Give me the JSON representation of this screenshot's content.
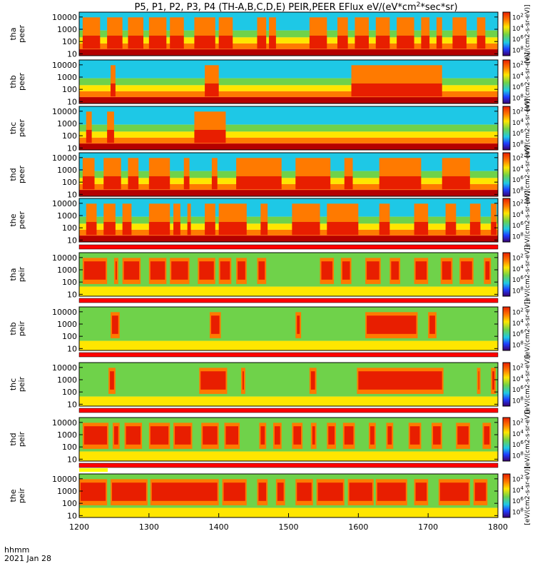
{
  "chart_data": {
    "type": "heatmap",
    "title": "P5, P1, P2, P3, P4 (TH-A,B,C,D,E) PEIR,PEER EFlux eV/(eV*cm2*sec*sr)",
    "title_main": "P5, P1, P2, P3, P4 (TH-A,B,C,D,E) PEIR,PEER EFlux eV/(eV*cm",
    "title_sup": "2",
    "title_tail": "*sec*sr)",
    "x_axis": {
      "label_line1": "hhmm",
      "label_line2": "2021 Jan 28",
      "ticks": [
        "1200",
        "1300",
        "1400",
        "1500",
        "1600",
        "1700",
        "1800"
      ],
      "range": [
        1200,
        1800
      ]
    },
    "y_axis": {
      "scale": "log",
      "ticks": [
        "10",
        "100",
        "1000",
        "10000"
      ],
      "range": [
        7,
        25000
      ]
    },
    "colorbar": {
      "scale": "log",
      "unit_label": "[eV/(cm2-s-sr-eV)]",
      "ticks_sup": [
        "2",
        "3",
        "4",
        "5",
        "6",
        "7",
        "8"
      ],
      "tick_base": "10"
    },
    "colors": {
      "background": "#ffffff",
      "dark_red": "#b40000",
      "red": "#e81e00",
      "orange": "#ff7a00",
      "yellow": "#ffe600",
      "green": "#6fd24a",
      "cyan": "#1ec8e6",
      "blue": "#1e3cff",
      "indicator_red": "#ff0000",
      "indicator_yellow": "#ffff00"
    },
    "panels": [
      {
        "id": "tha-peer",
        "probe": "tha",
        "instrument": "peer"
      },
      {
        "id": "thb-peer",
        "probe": "thb",
        "instrument": "peer"
      },
      {
        "id": "thc-peer",
        "probe": "thc",
        "instrument": "peer"
      },
      {
        "id": "thd-peer",
        "probe": "thd",
        "instrument": "peer"
      },
      {
        "id": "the-peer",
        "probe": "the",
        "instrument": "peer"
      },
      {
        "id": "tha-peir",
        "probe": "tha",
        "instrument": "peir"
      },
      {
        "id": "thb-peir",
        "probe": "thb",
        "instrument": "peir"
      },
      {
        "id": "thc-peir",
        "probe": "thc",
        "instrument": "peir"
      },
      {
        "id": "thd-peir",
        "probe": "thd",
        "instrument": "peir"
      },
      {
        "id": "the-peir",
        "probe": "the",
        "instrument": "peir"
      }
    ],
    "intense_intervals": {
      "tha-peer": [
        [
          1205,
          1230
        ],
        [
          1240,
          1262
        ],
        [
          1270,
          1292
        ],
        [
          1300,
          1325
        ],
        [
          1330,
          1350
        ],
        [
          1365,
          1395
        ],
        [
          1400,
          1420
        ],
        [
          1455,
          1468
        ],
        [
          1472,
          1482
        ],
        [
          1530,
          1555
        ],
        [
          1570,
          1585
        ],
        [
          1595,
          1615
        ],
        [
          1625,
          1645
        ],
        [
          1655,
          1680
        ],
        [
          1690,
          1702
        ],
        [
          1712,
          1720
        ],
        [
          1735,
          1755
        ],
        [
          1770,
          1782
        ]
      ],
      "thb-peer": [
        [
          1245,
          1252
        ],
        [
          1380,
          1400
        ],
        [
          1590,
          1720
        ]
      ],
      "thc-peer": [
        [
          1210,
          1218
        ],
        [
          1240,
          1250
        ],
        [
          1365,
          1410
        ]
      ],
      "thd-peer": [
        [
          1205,
          1222
        ],
        [
          1235,
          1260
        ],
        [
          1270,
          1285
        ],
        [
          1300,
          1330
        ],
        [
          1350,
          1358
        ],
        [
          1390,
          1398
        ],
        [
          1425,
          1490
        ],
        [
          1510,
          1560
        ],
        [
          1580,
          1592
        ],
        [
          1630,
          1690
        ],
        [
          1720,
          1760
        ]
      ],
      "the-peer": [
        [
          1210,
          1225
        ],
        [
          1235,
          1252
        ],
        [
          1262,
          1275
        ],
        [
          1300,
          1330
        ],
        [
          1335,
          1345
        ],
        [
          1355,
          1360
        ],
        [
          1380,
          1395
        ],
        [
          1400,
          1440
        ],
        [
          1460,
          1470
        ],
        [
          1505,
          1545
        ],
        [
          1555,
          1600
        ],
        [
          1630,
          1645
        ],
        [
          1680,
          1700
        ],
        [
          1725,
          1740
        ],
        [
          1760,
          1775
        ],
        [
          1790,
          1798
        ]
      ],
      "tha-peir": [
        [
          1205,
          1240
        ],
        [
          1250,
          1256
        ],
        [
          1262,
          1288
        ],
        [
          1300,
          1325
        ],
        [
          1330,
          1358
        ],
        [
          1370,
          1395
        ],
        [
          1400,
          1418
        ],
        [
          1425,
          1440
        ],
        [
          1455,
          1468
        ],
        [
          1545,
          1565
        ],
        [
          1575,
          1590
        ],
        [
          1610,
          1632
        ],
        [
          1645,
          1660
        ],
        [
          1680,
          1700
        ],
        [
          1718,
          1735
        ],
        [
          1745,
          1765
        ],
        [
          1780,
          1790
        ]
      ],
      "thb-peir": [
        [
          1245,
          1258
        ],
        [
          1387,
          1403
        ],
        [
          1510,
          1518
        ],
        [
          1610,
          1685
        ],
        [
          1700,
          1712
        ]
      ],
      "thc-peir": [
        [
          1242,
          1252
        ],
        [
          1372,
          1412
        ],
        [
          1432,
          1438
        ],
        [
          1530,
          1540
        ],
        [
          1598,
          1722
        ],
        [
          1770,
          1775
        ],
        [
          1790,
          1797
        ]
      ],
      "thd-peir": [
        [
          1205,
          1242
        ],
        [
          1248,
          1258
        ],
        [
          1265,
          1290
        ],
        [
          1300,
          1330
        ],
        [
          1335,
          1362
        ],
        [
          1375,
          1400
        ],
        [
          1408,
          1430
        ],
        [
          1458,
          1468
        ],
        [
          1478,
          1490
        ],
        [
          1505,
          1520
        ],
        [
          1532,
          1540
        ],
        [
          1555,
          1568
        ],
        [
          1578,
          1595
        ],
        [
          1615,
          1625
        ],
        [
          1640,
          1650
        ],
        [
          1672,
          1690
        ],
        [
          1705,
          1720
        ],
        [
          1740,
          1760
        ],
        [
          1778,
          1790
        ]
      ],
      "the-peir": [
        [
          1200,
          1240
        ],
        [
          1245,
          1298
        ],
        [
          1302,
          1400
        ],
        [
          1405,
          1440
        ],
        [
          1455,
          1470
        ],
        [
          1482,
          1495
        ],
        [
          1510,
          1535
        ],
        [
          1540,
          1580
        ],
        [
          1585,
          1622
        ],
        [
          1625,
          1670
        ],
        [
          1680,
          1700
        ],
        [
          1715,
          1760
        ],
        [
          1765,
          1785
        ]
      ]
    }
  }
}
